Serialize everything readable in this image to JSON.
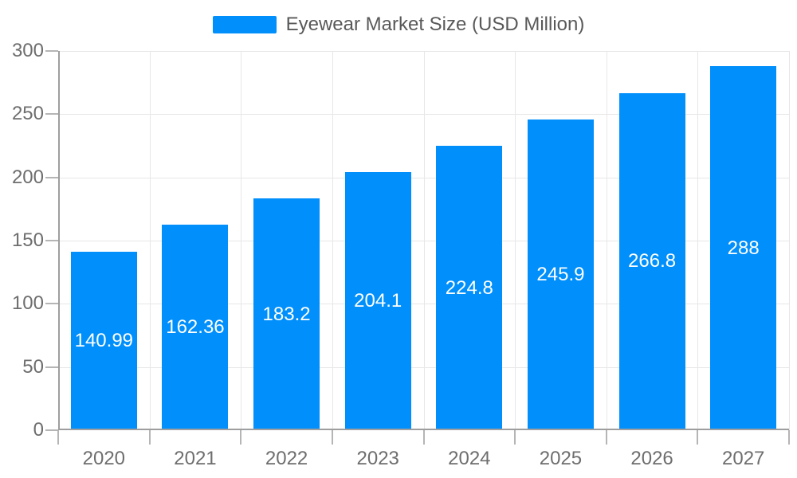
{
  "chart_data": {
    "type": "bar",
    "title": "Eyewear Market Size (USD Million)",
    "legend": {
      "label": "Eyewear Market Size (USD Million)",
      "position": "top"
    },
    "categories": [
      "2020",
      "2021",
      "2022",
      "2023",
      "2024",
      "2025",
      "2026",
      "2027"
    ],
    "series": [
      {
        "name": "Eyewear Market Size (USD Million)",
        "values": [
          140.99,
          162.36,
          183.2,
          204.1,
          224.8,
          245.9,
          266.8,
          288
        ]
      }
    ],
    "data_labels": [
      "140.99",
      "162.36",
      "183.2",
      "204.1",
      "224.8",
      "245.9",
      "266.8",
      "288"
    ],
    "xlabel": "",
    "ylabel": "",
    "ylim": [
      0,
      300
    ],
    "ytick_step": 50,
    "yticks": [
      0,
      50,
      100,
      150,
      200,
      250,
      300
    ],
    "grid": true,
    "colors": {
      "bar": "#008FFB",
      "data_label": "#ffffff",
      "axis_label": "#6e6e6e",
      "legend_text": "#595959",
      "gridline": "#e7e7e7",
      "axis_line": "#9e9e9e",
      "background": "#ffffff"
    }
  }
}
